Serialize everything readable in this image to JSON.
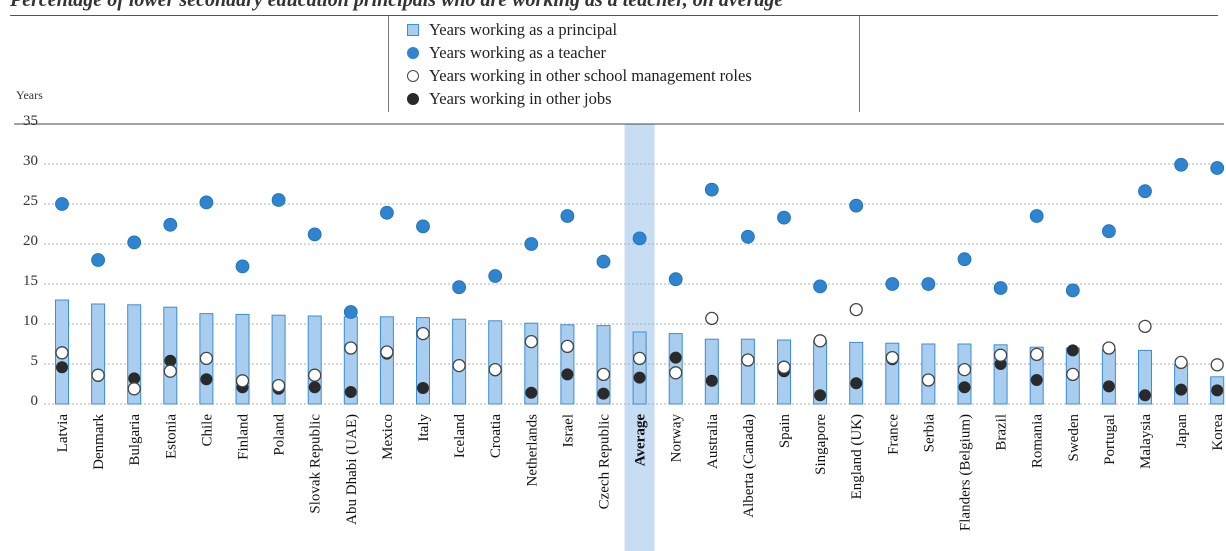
{
  "caption": "Percentage of lower secondary education principals who are working as a teacher, on average",
  "legend": {
    "principal": "Years working as a principal",
    "teacher": "Years working as a teacher",
    "mgmt": "Years working in other school management roles",
    "other": "Years working in other jobs"
  },
  "colors": {
    "bar_fill": "#a9cdee",
    "bar_stroke": "#3c8ed6",
    "highlight": "#c7ddf3",
    "teacher": "#2f84cf",
    "other": "#2a2a2a"
  },
  "chart_data": {
    "type": "bar",
    "ylabel": "Years",
    "ylim": [
      0,
      35
    ],
    "yticks": [
      0,
      5,
      10,
      15,
      20,
      25,
      30,
      35
    ],
    "grid": true,
    "highlight_category": "Average",
    "categories": [
      "Latvia",
      "Denmark",
      "Bulgaria",
      "Estonia",
      "Chile",
      "Finland",
      "Poland",
      "Slovak Republic",
      "Abu Dhabi (UAE)",
      "Mexico",
      "Italy",
      "Iceland",
      "Croatia",
      "Netherlands",
      "Israel",
      "Czech Republic",
      "Average",
      "Norway",
      "Australia",
      "Alberta (Canada)",
      "Spain",
      "Singapore",
      "England (UK)",
      "France",
      "Serbia",
      "Flanders (Belgium)",
      "Brazil",
      "Romania",
      "Sweden",
      "Portugal",
      "Malaysia",
      "Japan",
      "Korea"
    ],
    "series": [
      {
        "name": "Years working as a principal",
        "kind": "bar",
        "values": [
          13.0,
          12.5,
          12.4,
          12.1,
          11.3,
          11.2,
          11.1,
          11.0,
          10.9,
          10.9,
          10.8,
          10.6,
          10.4,
          10.1,
          9.9,
          9.8,
          9.0,
          8.8,
          8.1,
          8.1,
          8.0,
          7.9,
          7.7,
          7.6,
          7.5,
          7.5,
          7.4,
          7.1,
          7.0,
          6.8,
          6.7,
          4.9,
          3.4
        ]
      },
      {
        "name": "Years working as a teacher",
        "kind": "dot",
        "values": [
          25.0,
          18.0,
          20.2,
          22.4,
          25.2,
          17.2,
          25.5,
          21.2,
          11.5,
          23.9,
          22.2,
          14.6,
          16.0,
          20.0,
          23.5,
          17.8,
          20.7,
          15.6,
          26.8,
          20.9,
          23.3,
          14.7,
          24.8,
          15.0,
          15.0,
          18.1,
          14.5,
          23.5,
          14.2,
          21.6,
          26.6,
          29.9,
          29.5
        ]
      },
      {
        "name": "Years working in other school management roles",
        "kind": "ring",
        "values": [
          6.4,
          3.6,
          1.9,
          4.1,
          5.7,
          2.9,
          2.3,
          3.6,
          7.0,
          6.5,
          8.8,
          4.8,
          4.3,
          7.8,
          7.2,
          3.7,
          5.7,
          3.9,
          10.7,
          5.5,
          4.6,
          7.9,
          11.8,
          5.8,
          3.0,
          4.3,
          6.1,
          6.2,
          3.7,
          7.0,
          9.7,
          5.2,
          4.9
        ]
      },
      {
        "name": "Years working in other jobs",
        "kind": "dot",
        "values": [
          4.6,
          3.5,
          3.2,
          5.4,
          3.1,
          2.1,
          1.9,
          2.1,
          1.5,
          6.3,
          2.0,
          4.8,
          4.2,
          1.4,
          3.7,
          1.3,
          3.3,
          5.8,
          2.9,
          5.5,
          4.1,
          1.1,
          2.6,
          5.6,
          3.0,
          2.1,
          5.0,
          3.0,
          6.7,
          2.2,
          1.1,
          1.8,
          1.7
        ]
      }
    ]
  }
}
